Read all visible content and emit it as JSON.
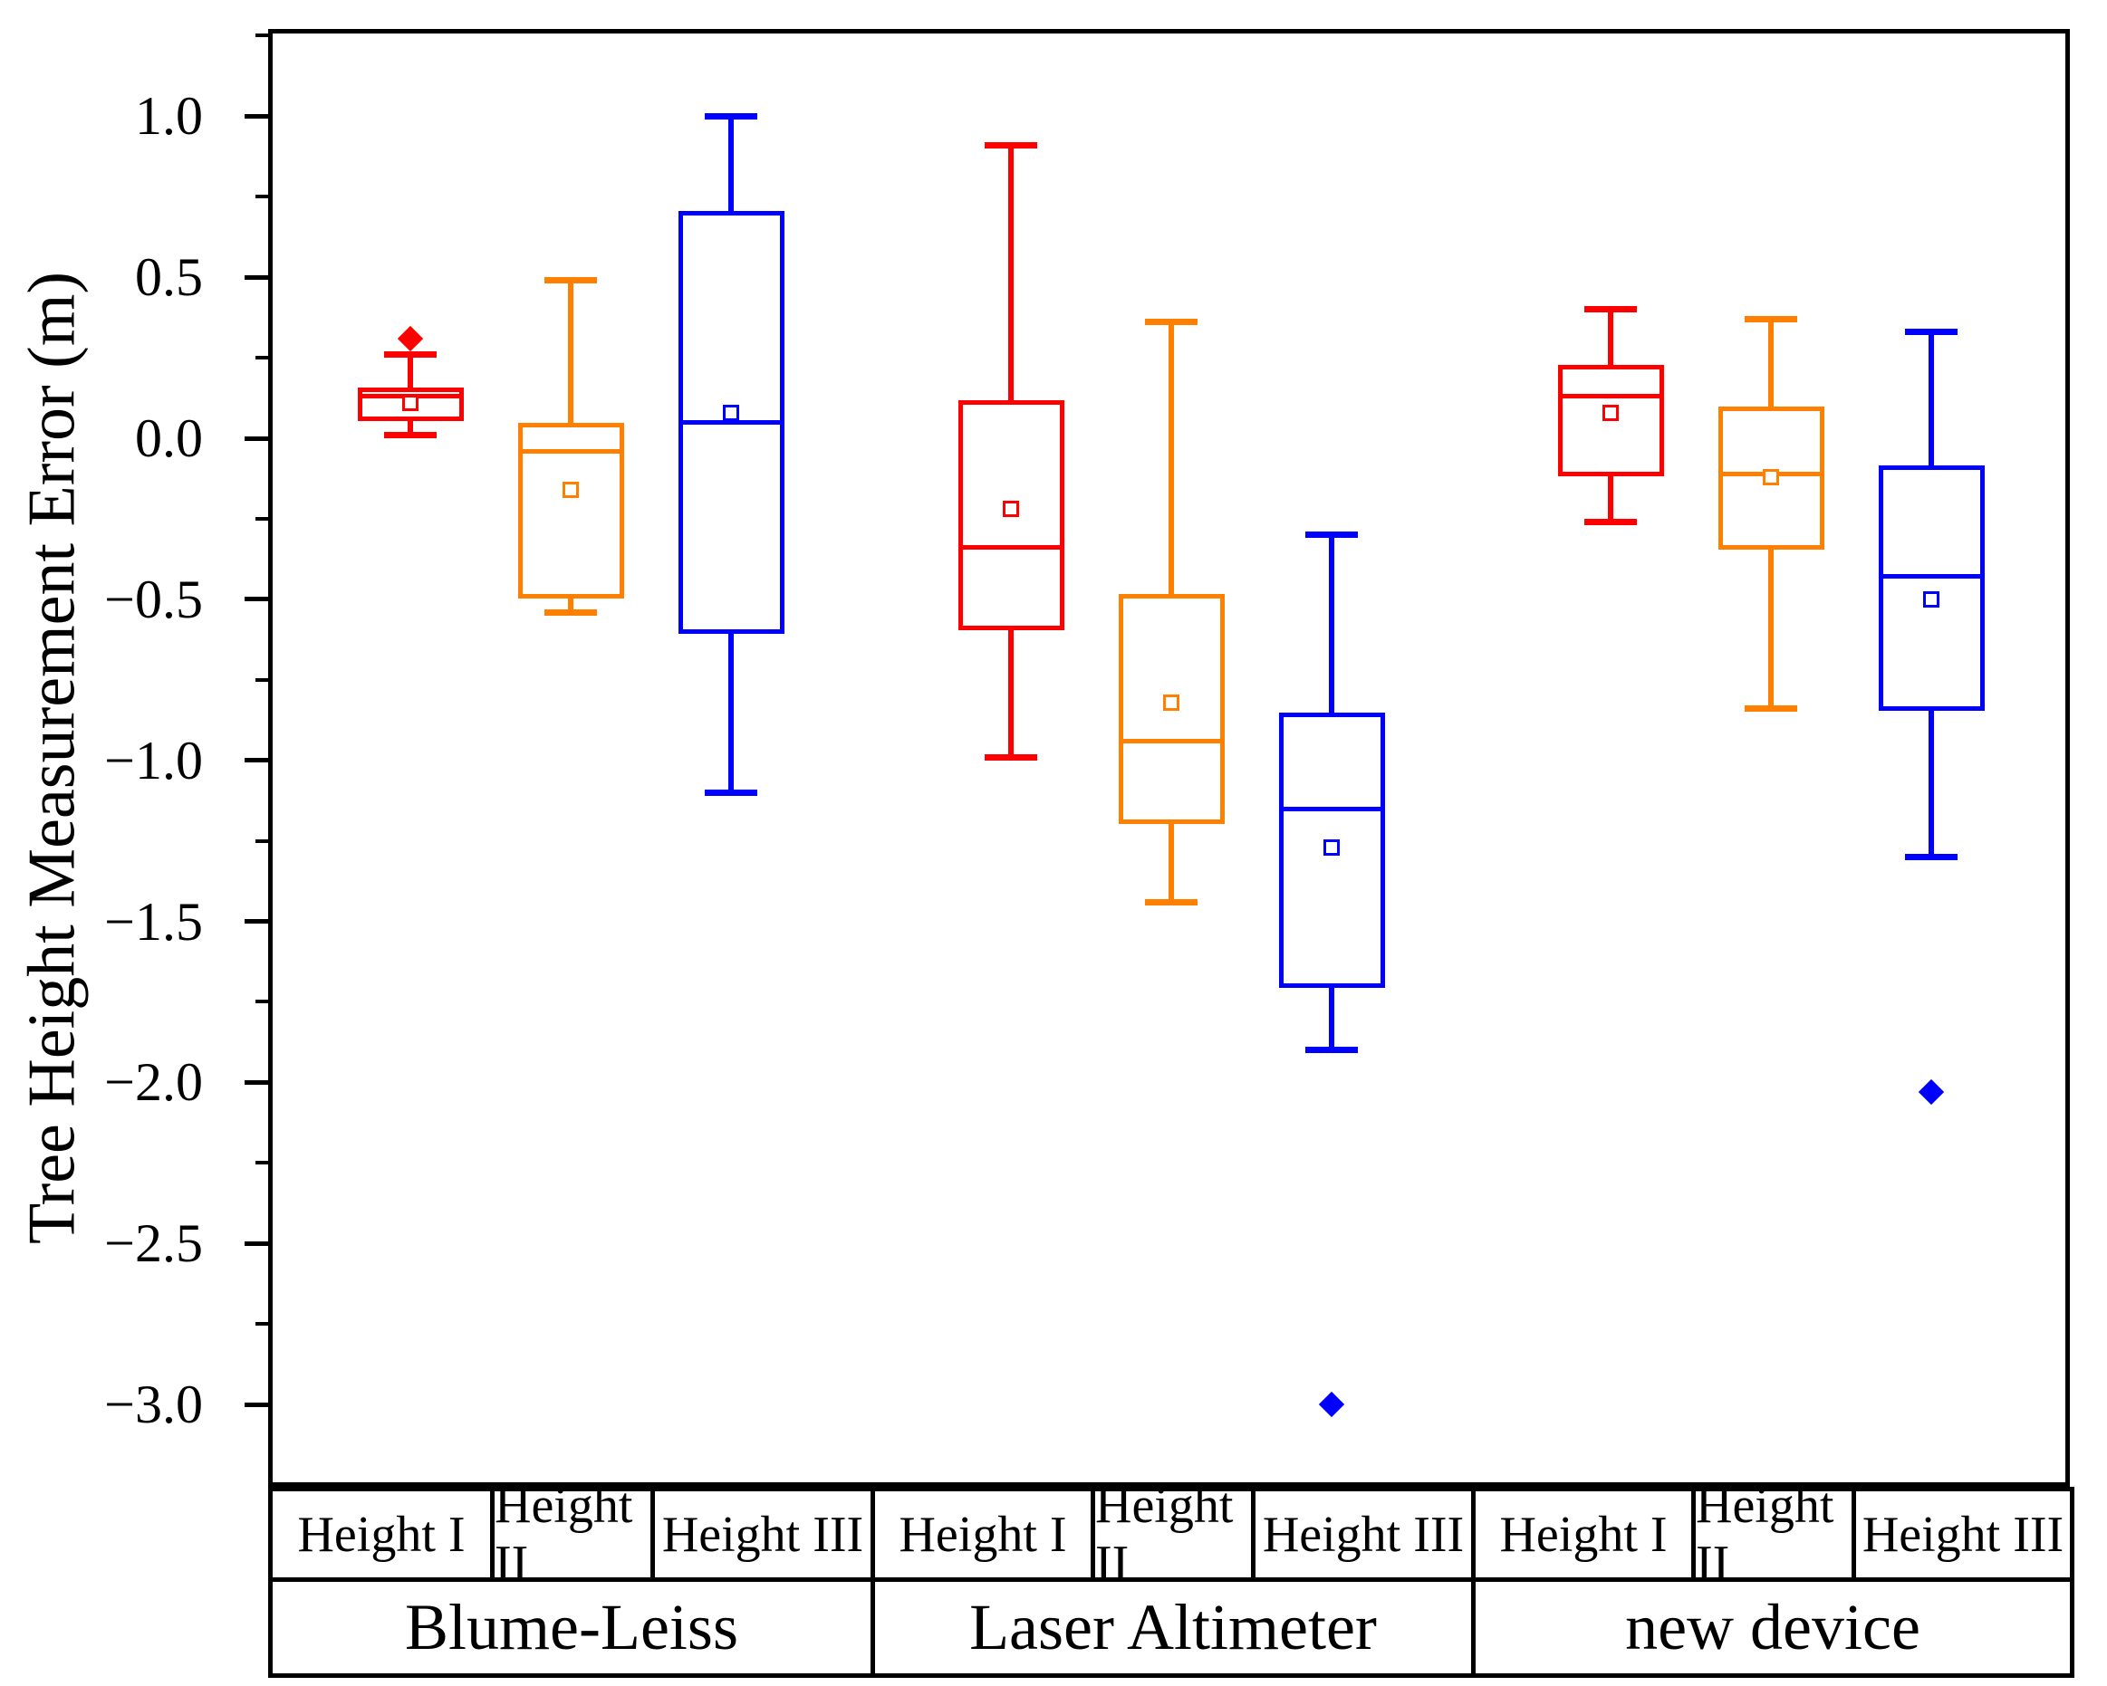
{
  "chart_data": {
    "type": "boxplot",
    "title": "",
    "ylabel": "Tree Height Measurement Error (m)",
    "xlabel": "",
    "ylim": [
      -3.26,
      1.27
    ],
    "grid": false,
    "legend": "none",
    "yticks_major": [
      1.0,
      0.5,
      0.0,
      -0.5,
      -1.0,
      -1.5,
      -2.0,
      -2.5,
      -3.0
    ],
    "ytick_labels": [
      "1.0",
      "0.5",
      "0.0",
      "−0.5",
      "−1.0",
      "−1.5",
      "−2.0",
      "−2.5",
      "−3.0"
    ],
    "yticks_minor": [
      1.25,
      0.75,
      0.25,
      -0.25,
      -0.75,
      -1.25,
      -1.75,
      -2.25,
      -2.75,
      -3.25
    ],
    "series_labels": [
      "Height I",
      "Height II",
      "Height III"
    ],
    "colors": {
      "height_i": "#ff0000",
      "height_ii": "#ff8000",
      "height_iii": "#0000ff",
      "axis": "#000000"
    },
    "groups": [
      {
        "name": "Blume-Leiss",
        "boxes": [
          {
            "label": "Height I",
            "color": "#ff0000",
            "whisker_low": 0.01,
            "q1": 0.06,
            "median": 0.13,
            "q3": 0.15,
            "whisker_high": 0.26,
            "mean": 0.11,
            "outliers": [
              0.31
            ]
          },
          {
            "label": "Height II",
            "color": "#ff8000",
            "whisker_low": -0.54,
            "q1": -0.49,
            "median": -0.04,
            "q3": 0.04,
            "whisker_high": 0.49,
            "mean": -0.16,
            "outliers": []
          },
          {
            "label": "Height III",
            "color": "#0000ff",
            "whisker_low": -1.1,
            "q1": -0.6,
            "median": 0.05,
            "q3": 0.7,
            "whisker_high": 1.0,
            "mean": 0.08,
            "outliers": []
          }
        ]
      },
      {
        "name": "Laser Altimeter",
        "boxes": [
          {
            "label": "Height I",
            "color": "#ff0000",
            "whisker_low": -0.99,
            "q1": -0.59,
            "median": -0.34,
            "q3": 0.11,
            "whisker_high": 0.91,
            "mean": -0.22,
            "outliers": []
          },
          {
            "label": "Height II",
            "color": "#ff8000",
            "whisker_low": -1.44,
            "q1": -1.19,
            "median": -0.94,
            "q3": -0.49,
            "whisker_high": 0.36,
            "mean": -0.82,
            "outliers": []
          },
          {
            "label": "Height III",
            "color": "#0000ff",
            "whisker_low": -1.9,
            "q1": -1.7,
            "median": -1.15,
            "q3": -0.86,
            "whisker_high": -0.3,
            "mean": -1.27,
            "outliers": [
              -3.0
            ]
          }
        ]
      },
      {
        "name": "new device",
        "boxes": [
          {
            "label": "Height I",
            "color": "#ff0000",
            "whisker_low": -0.26,
            "q1": -0.11,
            "median": 0.13,
            "q3": 0.22,
            "whisker_high": 0.4,
            "mean": 0.08,
            "outliers": []
          },
          {
            "label": "Height II",
            "color": "#ff8000",
            "whisker_low": -0.84,
            "q1": -0.34,
            "median": -0.11,
            "q3": 0.09,
            "whisker_high": 0.37,
            "mean": -0.12,
            "outliers": []
          },
          {
            "label": "Height III",
            "color": "#0000ff",
            "whisker_low": -1.3,
            "q1": -0.84,
            "median": -0.43,
            "q3": -0.09,
            "whisker_high": 0.33,
            "mean": -0.5,
            "outliers": [
              -2.03
            ]
          }
        ]
      }
    ]
  }
}
